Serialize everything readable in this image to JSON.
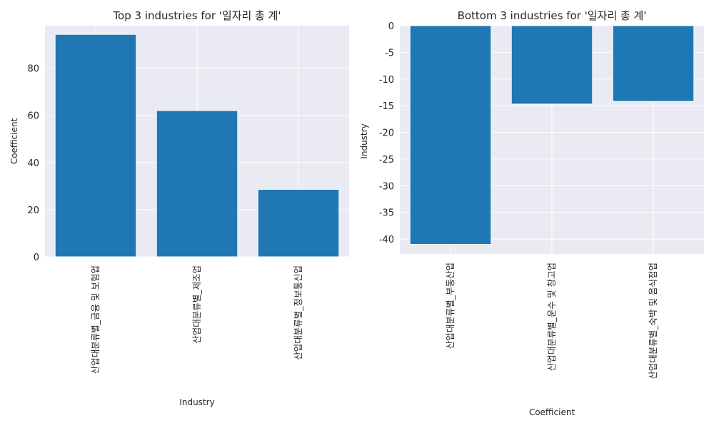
{
  "chart_data": [
    {
      "type": "bar",
      "title": "Top 3 industries for '일자리 총 계'",
      "xlabel": "Industry",
      "ylabel": "Coefficient",
      "categories": [
        "산업대분류별_금융 및 보험업",
        "산업대분류별_제조업",
        "산업대분류별_정보통신업"
      ],
      "values": [
        94.3,
        62.0,
        28.6
      ],
      "ylim": [
        0,
        98
      ],
      "yticks": [
        0,
        20,
        40,
        60,
        80
      ],
      "grid": true,
      "bar_color": "#1f77b4"
    },
    {
      "type": "bar",
      "title": "Bottom 3 industries for '일자리 총 계'",
      "xlabel": "Coefficient",
      "ylabel": "Industry",
      "categories": [
        "산업대분류별_부동산업",
        "산업대분류별_운수 및 창고업",
        "산업대분류별_숙박 및 음식점업"
      ],
      "values": [
        -41.0,
        -14.7,
        -14.2
      ],
      "ylim": [
        -42.8,
        0
      ],
      "yticks": [
        0,
        -5,
        -10,
        -15,
        -20,
        -25,
        -30,
        -35,
        -40
      ],
      "grid": true,
      "bar_color": "#1f77b4"
    }
  ]
}
